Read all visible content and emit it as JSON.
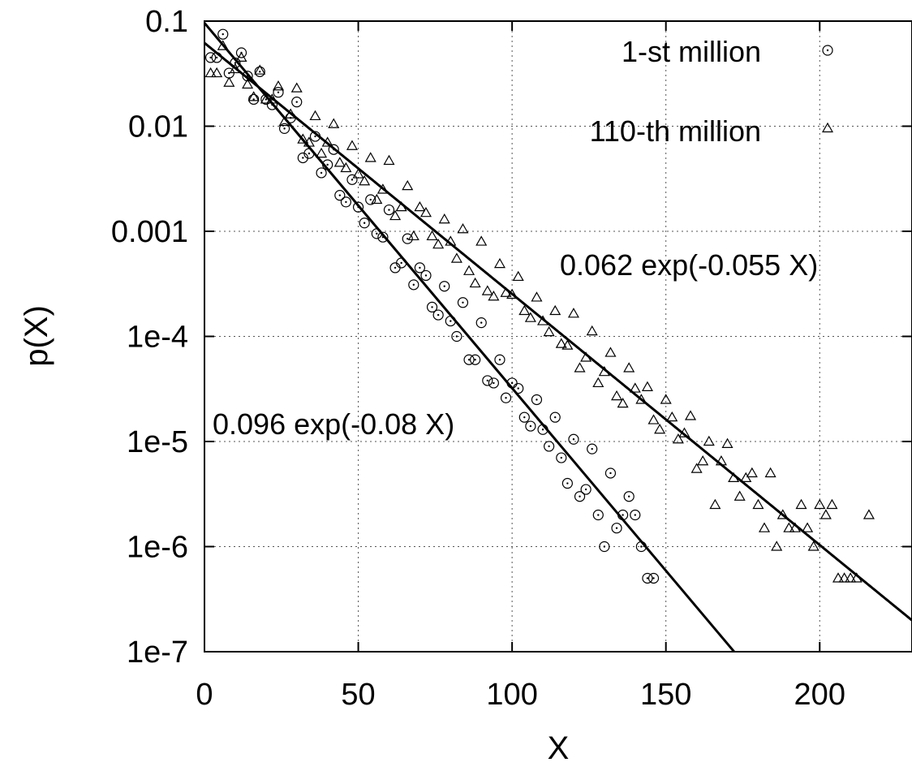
{
  "chart_data": {
    "type": "scatter",
    "title": "",
    "xlabel": "X",
    "ylabel": "p(X)",
    "xlim": [
      0,
      230
    ],
    "ylim": [
      1e-07,
      0.1
    ],
    "yscale": "log",
    "grid": true,
    "legend_position": "top-right",
    "x_ticks": [
      0,
      50,
      100,
      150,
      200
    ],
    "x_tick_labels": [
      "0",
      "50",
      "100",
      "150",
      "200"
    ],
    "y_ticks": [
      0.1,
      0.01,
      0.001,
      0.0001,
      1e-05,
      1e-06,
      1e-07
    ],
    "y_tick_labels": [
      "0.1",
      "0.01",
      "0.001",
      "1e-4",
      "1e-5",
      "1e-6",
      "1e-7"
    ],
    "series": [
      {
        "name": "1-st million",
        "marker": "circle",
        "points": [
          [
            2,
            0.045
          ],
          [
            4,
            0.045
          ],
          [
            6,
            0.075
          ],
          [
            8,
            0.032
          ],
          [
            10,
            0.04
          ],
          [
            12,
            0.05
          ],
          [
            14,
            0.03
          ],
          [
            16,
            0.018
          ],
          [
            18,
            0.033
          ],
          [
            20,
            0.018
          ],
          [
            22,
            0.016
          ],
          [
            24,
            0.021
          ],
          [
            26,
            0.0095
          ],
          [
            28,
            0.012
          ],
          [
            30,
            0.017
          ],
          [
            32,
            0.005
          ],
          [
            34,
            0.0055
          ],
          [
            36,
            0.008
          ],
          [
            38,
            0.0036
          ],
          [
            40,
            0.0043
          ],
          [
            42,
            0.006
          ],
          [
            44,
            0.0022
          ],
          [
            46,
            0.0019
          ],
          [
            48,
            0.0031
          ],
          [
            50,
            0.0017
          ],
          [
            52,
            0.0012
          ],
          [
            54,
            0.002
          ],
          [
            56,
            0.00095
          ],
          [
            58,
            0.00088
          ],
          [
            60,
            0.0016
          ],
          [
            62,
            0.00045
          ],
          [
            64,
            0.0005
          ],
          [
            66,
            0.00085
          ],
          [
            68,
            0.00031
          ],
          [
            70,
            0.00045
          ],
          [
            72,
            0.00038
          ],
          [
            74,
            0.00019
          ],
          [
            76,
            0.00016
          ],
          [
            78,
            0.0003
          ],
          [
            80,
            0.00014
          ],
          [
            82,
            0.0001
          ],
          [
            84,
            0.00021
          ],
          [
            86,
            6e-05
          ],
          [
            88,
            6e-05
          ],
          [
            90,
            0.000135
          ],
          [
            92,
            3.8e-05
          ],
          [
            94,
            3.6e-05
          ],
          [
            96,
            6e-05
          ],
          [
            98,
            2.6e-05
          ],
          [
            100,
            3.6e-05
          ],
          [
            102,
            3.2e-05
          ],
          [
            104,
            1.7e-05
          ],
          [
            106,
            1.4e-05
          ],
          [
            108,
            2.5e-05
          ],
          [
            110,
            1.3e-05
          ],
          [
            112,
            9e-06
          ],
          [
            114,
            1.7e-05
          ],
          [
            116,
            7e-06
          ],
          [
            118,
            4e-06
          ],
          [
            120,
            1.05e-05
          ],
          [
            122,
            3e-06
          ],
          [
            124,
            3.5e-06
          ],
          [
            126,
            8.5e-06
          ],
          [
            128,
            2e-06
          ],
          [
            130,
            1e-06
          ],
          [
            132,
            5e-06
          ],
          [
            134,
            1.5e-06
          ],
          [
            136,
            2e-06
          ],
          [
            138,
            3e-06
          ],
          [
            140,
            2e-06
          ],
          [
            142,
            1e-06
          ],
          [
            144,
            5e-07
          ],
          [
            146,
            5e-07
          ]
        ]
      },
      {
        "name": "110-th million",
        "marker": "triangle",
        "points": [
          [
            2,
            0.032
          ],
          [
            4,
            0.032
          ],
          [
            6,
            0.058
          ],
          [
            8,
            0.026
          ],
          [
            10,
            0.035
          ],
          [
            12,
            0.045
          ],
          [
            14,
            0.025
          ],
          [
            16,
            0.019
          ],
          [
            18,
            0.034
          ],
          [
            20,
            0.018
          ],
          [
            22,
            0.018
          ],
          [
            24,
            0.024
          ],
          [
            26,
            0.011
          ],
          [
            28,
            0.013
          ],
          [
            30,
            0.023
          ],
          [
            32,
            0.0075
          ],
          [
            34,
            0.007
          ],
          [
            36,
            0.0125
          ],
          [
            38,
            0.0055
          ],
          [
            40,
            0.007
          ],
          [
            42,
            0.0105
          ],
          [
            44,
            0.0045
          ],
          [
            46,
            0.004
          ],
          [
            48,
            0.0065
          ],
          [
            50,
            0.0035
          ],
          [
            52,
            0.003
          ],
          [
            54,
            0.005
          ],
          [
            56,
            0.002
          ],
          [
            58,
            0.0025
          ],
          [
            60,
            0.0047
          ],
          [
            62,
            0.0014
          ],
          [
            64,
            0.0017
          ],
          [
            66,
            0.0027
          ],
          [
            68,
            0.0009
          ],
          [
            70,
            0.0017
          ],
          [
            72,
            0.0015
          ],
          [
            74,
            0.0009
          ],
          [
            76,
            0.00075
          ],
          [
            78,
            0.0013
          ],
          [
            80,
            0.0008
          ],
          [
            82,
            0.00055
          ],
          [
            84,
            0.00105
          ],
          [
            86,
            0.00042
          ],
          [
            88,
            0.00032
          ],
          [
            90,
            0.0008
          ],
          [
            92,
            0.00027
          ],
          [
            94,
            0.00024
          ],
          [
            96,
            0.00049
          ],
          [
            98,
            0.00026
          ],
          [
            100,
            0.00025
          ],
          [
            102,
            0.00037
          ],
          [
            104,
            0.000175
          ],
          [
            106,
            0.00015
          ],
          [
            108,
            0.000235
          ],
          [
            110,
            0.00014
          ],
          [
            112,
            0.00011
          ],
          [
            114,
            0.000175
          ],
          [
            116,
            8.5e-05
          ],
          [
            118,
            8.2e-05
          ],
          [
            120,
            0.000165
          ],
          [
            122,
            5e-05
          ],
          [
            124,
            6.3e-05
          ],
          [
            126,
            0.000112
          ],
          [
            128,
            3.6e-05
          ],
          [
            130,
            4.6e-05
          ],
          [
            132,
            7e-05
          ],
          [
            134,
            2.7e-05
          ],
          [
            136,
            2.3e-05
          ],
          [
            138,
            5e-05
          ],
          [
            140,
            3.2e-05
          ],
          [
            142,
            2.5e-05
          ],
          [
            144,
            3.3e-05
          ],
          [
            146,
            1.6e-05
          ],
          [
            148,
            1.3e-05
          ],
          [
            150,
            2.5e-05
          ],
          [
            152,
            1.7e-05
          ],
          [
            154,
            1.05e-05
          ],
          [
            156,
            1.2e-05
          ],
          [
            158,
            1.75e-05
          ],
          [
            160,
            5.5e-06
          ],
          [
            162,
            6.5e-06
          ],
          [
            164,
            1e-05
          ],
          [
            166,
            2.5e-06
          ],
          [
            168,
            6.5e-06
          ],
          [
            170,
            9.5e-06
          ],
          [
            172,
            4.5e-06
          ],
          [
            174,
            3e-06
          ],
          [
            176,
            4.5e-06
          ],
          [
            178,
            5e-06
          ],
          [
            180,
            2.5e-06
          ],
          [
            182,
            1.5e-06
          ],
          [
            184,
            5e-06
          ],
          [
            186,
            1e-06
          ],
          [
            188,
            2e-06
          ],
          [
            190,
            1.5e-06
          ],
          [
            192,
            1.5e-06
          ],
          [
            194,
            2.5e-06
          ],
          [
            196,
            1.5e-06
          ],
          [
            198,
            1e-06
          ],
          [
            200,
            2.5e-06
          ],
          [
            202,
            2e-06
          ],
          [
            204,
            2.5e-06
          ],
          [
            206,
            5e-07
          ],
          [
            208,
            5e-07
          ],
          [
            210,
            5e-07
          ],
          [
            212,
            5e-07
          ],
          [
            216,
            2e-06
          ]
        ]
      }
    ],
    "fits": [
      {
        "label": "0.096 exp(-0.08 X)",
        "A": 0.096,
        "b": 0.08
      },
      {
        "label": "0.062 exp(-0.055 X)",
        "A": 0.062,
        "b": 0.055
      }
    ]
  }
}
